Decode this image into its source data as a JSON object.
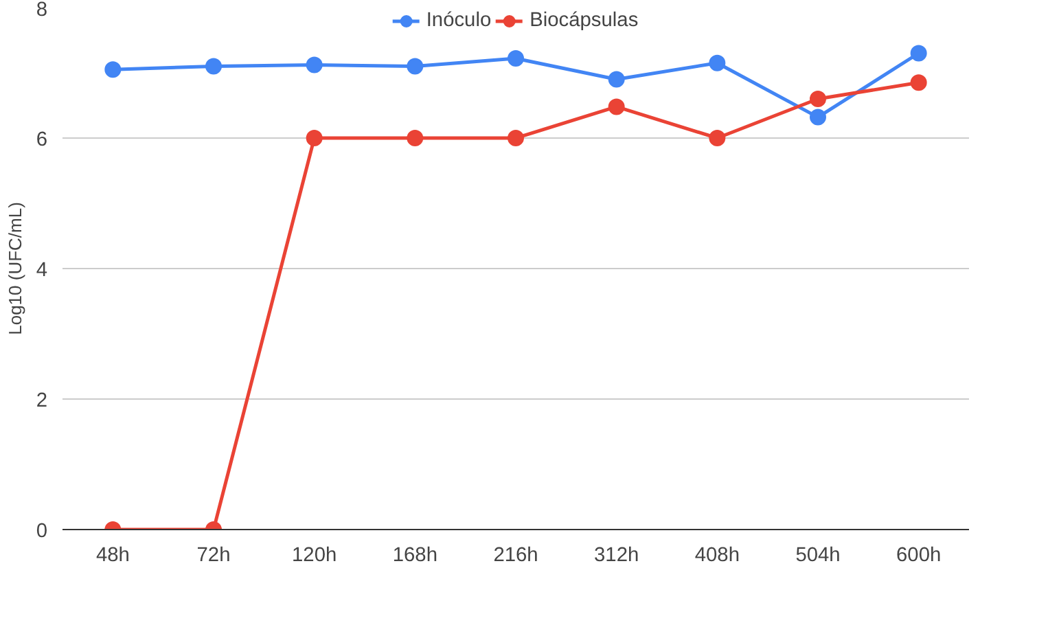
{
  "chart_data": {
    "type": "line",
    "ylabel": "Log10 (UFC/mL)",
    "categories": [
      "48h",
      "72h",
      "120h",
      "168h",
      "216h",
      "312h",
      "408h",
      "504h",
      "600h"
    ],
    "series": [
      {
        "name": "Inóculo",
        "color": "#4285f4",
        "values": [
          7.05,
          7.1,
          7.12,
          7.1,
          7.22,
          6.9,
          7.15,
          6.32,
          7.3
        ]
      },
      {
        "name": "Biocápsulas",
        "color": "#ea4335",
        "values": [
          0,
          0,
          6,
          6,
          6,
          6.48,
          6,
          6.6,
          6.85
        ]
      }
    ],
    "ylim": [
      0,
      8
    ],
    "yticks": [
      0,
      2,
      4,
      6,
      8
    ],
    "grid": "y",
    "legend": "top",
    "marker": "circle",
    "line_style": "solid"
  }
}
